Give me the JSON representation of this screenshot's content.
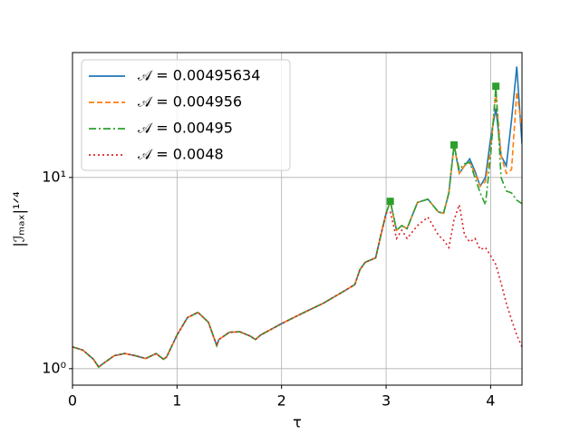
{
  "chart_data": {
    "type": "line",
    "xlabel": "τ",
    "ylabel": "|ℐₘₐₓ|¹ᐟ⁴",
    "log_y": true,
    "grid": true,
    "legend": "upper left",
    "xlim": [
      0,
      4.3
    ],
    "ylim": [
      0.82,
      45
    ],
    "xticks": [
      0,
      1,
      2,
      3,
      4
    ],
    "yticks": [
      {
        "value": 1,
        "label": "10⁰"
      },
      {
        "value": 10,
        "label": "10¹"
      }
    ],
    "x": [
      0,
      0.1,
      0.2,
      0.25,
      0.3,
      0.4,
      0.5,
      0.6,
      0.7,
      0.8,
      0.87,
      0.9,
      1.0,
      1.1,
      1.2,
      1.3,
      1.38,
      1.4,
      1.5,
      1.6,
      1.7,
      1.75,
      1.8,
      2.0,
      2.2,
      2.4,
      2.6,
      2.7,
      2.75,
      2.8,
      2.9,
      2.95,
      3.0,
      3.04,
      3.1,
      3.15,
      3.2,
      3.3,
      3.4,
      3.5,
      3.55,
      3.6,
      3.65,
      3.7,
      3.75,
      3.8,
      3.85,
      3.9,
      3.95,
      4.0,
      4.05,
      4.1,
      4.15,
      4.2,
      4.25,
      4.3
    ],
    "series": [
      {
        "name": "𝒜 = 0.00495634",
        "color": "#1f77b4",
        "linestyle": "solid",
        "values": [
          1.3,
          1.25,
          1.12,
          1.02,
          1.07,
          1.17,
          1.2,
          1.17,
          1.13,
          1.2,
          1.12,
          1.15,
          1.5,
          1.85,
          1.97,
          1.75,
          1.32,
          1.42,
          1.55,
          1.56,
          1.48,
          1.42,
          1.5,
          1.72,
          1.95,
          2.2,
          2.55,
          2.75,
          3.3,
          3.6,
          3.8,
          5,
          6.5,
          7.5,
          5.3,
          5.6,
          5.4,
          7.4,
          7.7,
          6.6,
          6.5,
          8.3,
          14.8,
          10.5,
          11.5,
          12.5,
          10.8,
          9,
          10,
          16,
          23,
          13,
          11.5,
          20,
          38,
          15
        ]
      },
      {
        "name": "𝒜 = 0.004956",
        "color": "#ff7f0e",
        "linestyle": "dashed",
        "values": [
          1.3,
          1.25,
          1.12,
          1.02,
          1.07,
          1.17,
          1.2,
          1.17,
          1.13,
          1.2,
          1.12,
          1.15,
          1.5,
          1.85,
          1.97,
          1.75,
          1.32,
          1.42,
          1.55,
          1.56,
          1.48,
          1.42,
          1.5,
          1.72,
          1.95,
          2.2,
          2.55,
          2.75,
          3.3,
          3.6,
          3.8,
          5,
          6.5,
          7.5,
          5.3,
          5.6,
          5.4,
          7.4,
          7.7,
          6.6,
          6.5,
          8.3,
          14.8,
          10.5,
          11.5,
          12,
          10.5,
          9,
          9.5,
          14,
          28,
          13,
          10.5,
          11,
          28,
          18
        ]
      },
      {
        "name": "𝒜 = 0.00495",
        "color": "#2ca02c",
        "linestyle": "dashdot",
        "values": [
          1.3,
          1.25,
          1.12,
          1.02,
          1.07,
          1.17,
          1.2,
          1.17,
          1.13,
          1.2,
          1.12,
          1.15,
          1.5,
          1.85,
          1.97,
          1.75,
          1.32,
          1.42,
          1.55,
          1.56,
          1.48,
          1.42,
          1.5,
          1.72,
          1.95,
          2.2,
          2.55,
          2.75,
          3.3,
          3.6,
          3.8,
          5,
          6.5,
          7.5,
          5.3,
          5.6,
          5.4,
          7.4,
          7.7,
          6.6,
          6.5,
          8.3,
          14.8,
          11,
          11.8,
          12,
          10,
          8.3,
          7.2,
          13,
          30,
          10,
          8.5,
          8.3,
          7.6,
          7.3
        ]
      },
      {
        "name": "𝒜 = 0.0048",
        "color": "#d62728",
        "linestyle": "dotted",
        "values": [
          1.3,
          1.25,
          1.12,
          1.02,
          1.07,
          1.17,
          1.2,
          1.17,
          1.13,
          1.2,
          1.12,
          1.15,
          1.5,
          1.85,
          1.97,
          1.75,
          1.32,
          1.42,
          1.55,
          1.56,
          1.48,
          1.42,
          1.5,
          1.72,
          1.95,
          2.2,
          2.55,
          2.75,
          3.3,
          3.6,
          3.8,
          5,
          6.5,
          6.6,
          4.8,
          5.3,
          4.8,
          5.6,
          6.2,
          5,
          4.7,
          4.3,
          6,
          7.2,
          5,
          4.6,
          4.8,
          4.2,
          4.3,
          3.9,
          3.5,
          2.8,
          2.2,
          1.8,
          1.5,
          1.3
        ]
      }
    ],
    "markers": {
      "color": "#2ca02c",
      "x": [
        3.04,
        3.65,
        4.05
      ],
      "values": [
        7.5,
        14.8,
        30
      ]
    }
  }
}
